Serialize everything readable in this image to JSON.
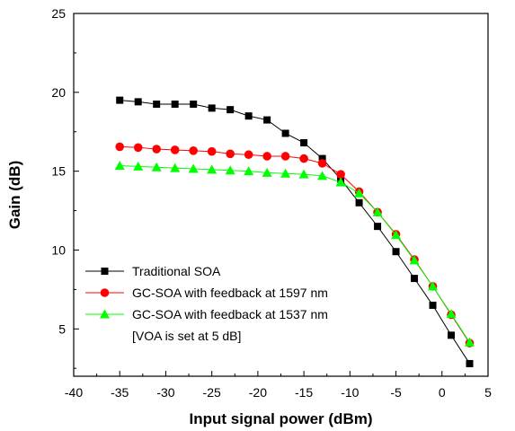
{
  "chart_data": {
    "type": "line",
    "title": "",
    "xlabel": "Input signal power (dBm)",
    "ylabel": "Gain (dB)",
    "xlim": [
      -40,
      5
    ],
    "ylim": [
      2,
      25
    ],
    "xticks": [
      -40,
      -35,
      -30,
      -25,
      -20,
      -15,
      -10,
      -5,
      0,
      5
    ],
    "yticks": [
      5,
      10,
      15,
      20,
      25
    ],
    "grid": false,
    "legend": {
      "position": "lower-left",
      "entries": [
        "Traditional SOA",
        "GC-SOA with feedback at 1597 nm",
        "GC-SOA with feedback at 1537 nm"
      ],
      "note": "[VOA is set at 5 dB]"
    },
    "series": [
      {
        "name": "Traditional SOA",
        "color": "#000000",
        "marker": "square",
        "x": [
          -35,
          -33,
          -31,
          -29,
          -27,
          -25,
          -23,
          -21,
          -19,
          -17,
          -15,
          -13,
          -11,
          -9,
          -7,
          -5,
          -3,
          -1,
          1,
          3
        ],
        "y": [
          19.5,
          19.4,
          19.25,
          19.25,
          19.25,
          19.0,
          18.9,
          18.5,
          18.25,
          17.4,
          16.8,
          15.8,
          14.5,
          13.0,
          11.5,
          9.9,
          8.2,
          6.5,
          4.6,
          2.8
        ]
      },
      {
        "name": "GC-SOA with feedback at 1597 nm",
        "color": "#ff0000",
        "marker": "circle",
        "x": [
          -35,
          -33,
          -31,
          -29,
          -27,
          -25,
          -23,
          -21,
          -19,
          -17,
          -15,
          -13,
          -11,
          -9,
          -7,
          -5,
          -3,
          -1,
          1,
          3
        ],
        "y": [
          16.55,
          16.5,
          16.4,
          16.35,
          16.3,
          16.25,
          16.1,
          16.05,
          15.95,
          15.95,
          15.8,
          15.5,
          14.8,
          13.7,
          12.4,
          11.0,
          9.4,
          7.7,
          5.9,
          4.1
        ]
      },
      {
        "name": "GC-SOA with feedback at 1537 nm",
        "color": "#00ff00",
        "marker": "triangle",
        "x": [
          -35,
          -33,
          -31,
          -29,
          -27,
          -25,
          -23,
          -21,
          -19,
          -17,
          -15,
          -13,
          -11,
          -9,
          -7,
          -5,
          -3,
          -1,
          1,
          3
        ],
        "y": [
          15.35,
          15.3,
          15.25,
          15.2,
          15.15,
          15.1,
          15.05,
          15.0,
          14.9,
          14.85,
          14.8,
          14.7,
          14.3,
          13.6,
          12.4,
          10.95,
          9.35,
          7.7,
          5.95,
          4.15
        ]
      }
    ]
  }
}
